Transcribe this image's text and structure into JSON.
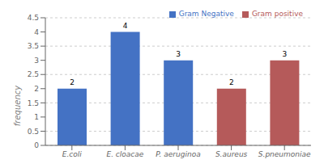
{
  "chart_data": {
    "type": "bar",
    "categories": [
      "E.coli",
      "E. cloacae",
      "P. aeruginoa",
      "S.aureus",
      "S.pneumoniae"
    ],
    "series": [
      {
        "name": "Gram Negative",
        "color": "#4472C4",
        "values": [
          2,
          4,
          3,
          null,
          null
        ]
      },
      {
        "name": "Gram positive",
        "color": "#B55A5A",
        "values": [
          null,
          null,
          null,
          2,
          3
        ]
      }
    ],
    "stacked": true,
    "ylabel": "frequency",
    "ylim": [
      0,
      4.5
    ],
    "yticks": [
      0,
      0.5,
      1,
      1.5,
      2,
      2.5,
      3,
      3.5,
      4,
      4.5
    ],
    "grid": true,
    "legend": "upper right",
    "data_labels": true
  }
}
